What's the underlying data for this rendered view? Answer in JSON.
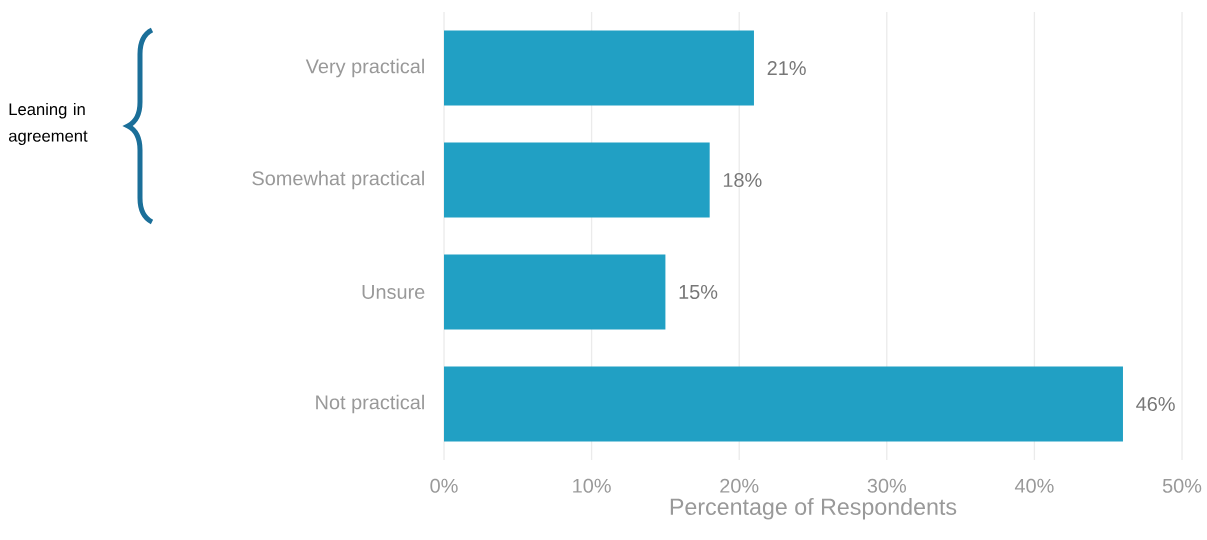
{
  "chart_data": {
    "type": "bar",
    "orientation": "horizontal",
    "categories": [
      "Very practical",
      "Somewhat practical",
      "Unsure",
      "Not practical"
    ],
    "values": [
      21,
      18,
      15,
      46
    ],
    "value_labels": [
      "21%",
      "18%",
      "15%",
      "46%"
    ],
    "color": "#21a0c4",
    "xlim": [
      0,
      50
    ],
    "xticks": [
      {
        "value": 0,
        "label": "0%"
      },
      {
        "value": 10,
        "label": "10%"
      },
      {
        "value": 20,
        "label": "20%"
      },
      {
        "value": 30,
        "label": "30%"
      },
      {
        "value": 40,
        "label": "40%"
      },
      {
        "value": 50,
        "label": "50%"
      }
    ],
    "xlabel": "Percentage of Respondents",
    "grid": "x",
    "annotations": [
      "Leaning in agreement"
    ]
  }
}
